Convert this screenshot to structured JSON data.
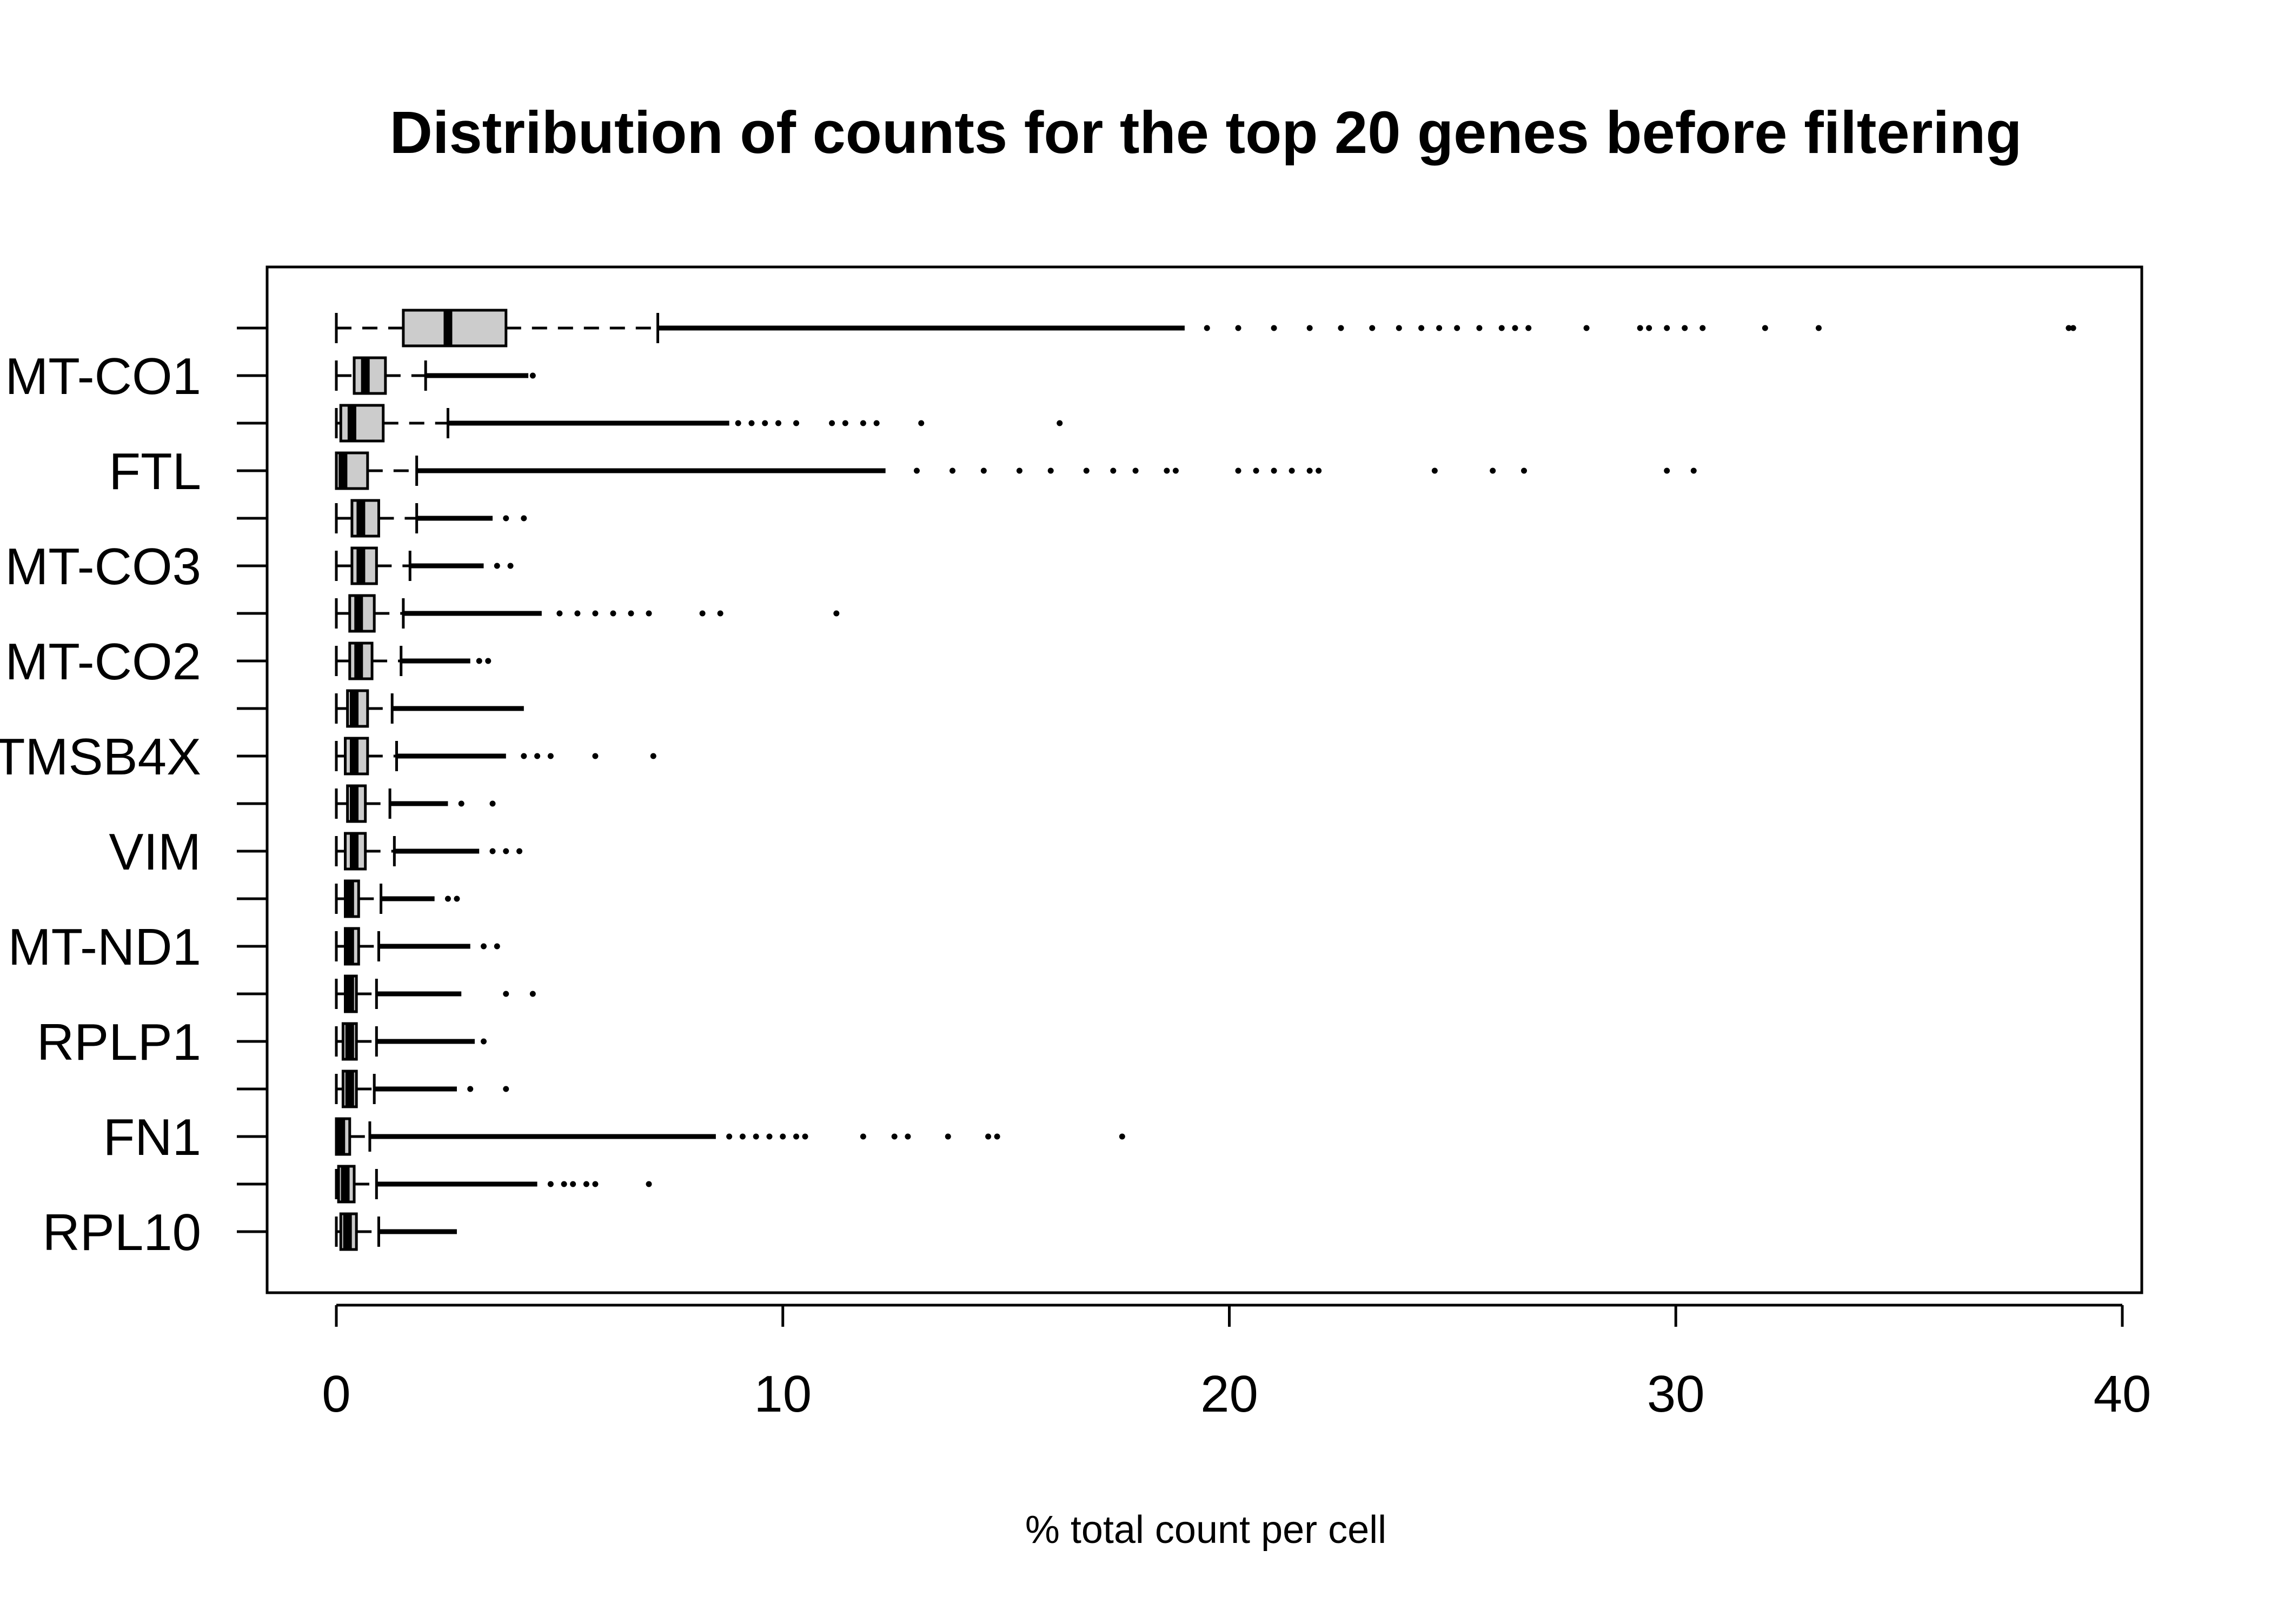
{
  "chart_data": {
    "type": "boxplot",
    "orientation": "horizontal",
    "title": "Distribution of counts for the top 20 genes before filtering",
    "xlabel": "% total count per cell",
    "ylabel": "",
    "xlim": [
      0,
      40
    ],
    "x_ticks": [
      "0",
      "10",
      "20",
      "30",
      "40"
    ],
    "grid": false,
    "legend": "none",
    "box_fill": "#cccccc",
    "line_color": "#000000",
    "series": [
      {
        "label": "",
        "min": 0.0,
        "q1": 1.5,
        "median": 2.5,
        "q3": 3.8,
        "whisker_high": 7.2,
        "outlier_dense_to": 19.0,
        "outliers": [
          19.5,
          20.2,
          21.0,
          21.8,
          22.5,
          23.2,
          23.8,
          24.3,
          24.7,
          25.1,
          25.6,
          26.1,
          26.4,
          26.7,
          28.0,
          29.2,
          29.4,
          29.8,
          30.2,
          30.6,
          32.0,
          33.2,
          38.8,
          38.9
        ]
      },
      {
        "label": "MT-CO1",
        "min": 0.0,
        "q1": 0.4,
        "median": 0.65,
        "q3": 1.1,
        "whisker_high": 2.0,
        "outlier_dense_to": 4.3,
        "outliers": [
          4.4
        ]
      },
      {
        "label": "",
        "min": 0.0,
        "q1": 0.1,
        "median": 0.35,
        "q3": 1.05,
        "whisker_high": 2.5,
        "outlier_dense_to": 8.8,
        "outliers": [
          9.0,
          9.3,
          9.6,
          9.9,
          10.3,
          11.1,
          11.4,
          11.8,
          12.1,
          13.1,
          16.2
        ]
      },
      {
        "label": "FTL",
        "min": 0.0,
        "q1": 0.0,
        "median": 0.15,
        "q3": 0.7,
        "whisker_high": 1.8,
        "outlier_dense_to": 12.3,
        "outliers": [
          13.0,
          13.8,
          14.5,
          15.3,
          16.0,
          16.8,
          17.4,
          17.9,
          18.6,
          18.8,
          20.2,
          20.6,
          21.0,
          21.4,
          21.8,
          22.0,
          24.6,
          25.9,
          26.6,
          29.8,
          30.4
        ]
      },
      {
        "label": "",
        "min": 0.0,
        "q1": 0.35,
        "median": 0.55,
        "q3": 0.95,
        "whisker_high": 1.8,
        "outlier_dense_to": 3.5,
        "outliers": [
          3.8,
          4.2
        ]
      },
      {
        "label": "MT-CO3",
        "min": 0.0,
        "q1": 0.35,
        "median": 0.55,
        "q3": 0.9,
        "whisker_high": 1.65,
        "outlier_dense_to": 3.3,
        "outliers": [
          3.6,
          3.9
        ]
      },
      {
        "label": "",
        "min": 0.0,
        "q1": 0.3,
        "median": 0.5,
        "q3": 0.85,
        "whisker_high": 1.5,
        "outlier_dense_to": 4.6,
        "outliers": [
          5.0,
          5.4,
          5.8,
          6.2,
          6.6,
          7.0,
          8.2,
          8.6,
          11.2
        ]
      },
      {
        "label": "MT-CO2",
        "min": 0.0,
        "q1": 0.3,
        "median": 0.5,
        "q3": 0.8,
        "whisker_high": 1.45,
        "outlier_dense_to": 3.0,
        "outliers": [
          3.2,
          3.4
        ]
      },
      {
        "label": "",
        "min": 0.0,
        "q1": 0.25,
        "median": 0.4,
        "q3": 0.7,
        "whisker_high": 1.25,
        "outlier_dense_to": 4.2,
        "outliers": []
      },
      {
        "label": "TMSB4X",
        "min": 0.0,
        "q1": 0.2,
        "median": 0.4,
        "q3": 0.7,
        "whisker_high": 1.35,
        "outlier_dense_to": 3.8,
        "outliers": [
          4.2,
          4.5,
          4.8,
          5.8,
          7.1
        ]
      },
      {
        "label": "",
        "min": 0.0,
        "q1": 0.25,
        "median": 0.4,
        "q3": 0.65,
        "whisker_high": 1.2,
        "outlier_dense_to": 2.5,
        "outliers": [
          2.8,
          3.5
        ]
      },
      {
        "label": "VIM",
        "min": 0.0,
        "q1": 0.2,
        "median": 0.4,
        "q3": 0.65,
        "whisker_high": 1.3,
        "outlier_dense_to": 3.2,
        "outliers": [
          3.5,
          3.8,
          4.1
        ]
      },
      {
        "label": "",
        "min": 0.0,
        "q1": 0.2,
        "median": 0.3,
        "q3": 0.5,
        "whisker_high": 1.0,
        "outlier_dense_to": 2.2,
        "outliers": [
          2.5,
          2.7
        ]
      },
      {
        "label": "MT-ND1",
        "min": 0.0,
        "q1": 0.2,
        "median": 0.3,
        "q3": 0.5,
        "whisker_high": 0.95,
        "outlier_dense_to": 3.0,
        "outliers": [
          3.3,
          3.6
        ]
      },
      {
        "label": "",
        "min": 0.0,
        "q1": 0.2,
        "median": 0.3,
        "q3": 0.45,
        "whisker_high": 0.9,
        "outlier_dense_to": 2.8,
        "outliers": [
          3.8,
          4.4
        ]
      },
      {
        "label": "RPLP1",
        "min": 0.0,
        "q1": 0.15,
        "median": 0.3,
        "q3": 0.45,
        "whisker_high": 0.9,
        "outlier_dense_to": 3.1,
        "outliers": [
          3.3
        ]
      },
      {
        "label": "",
        "min": 0.0,
        "q1": 0.15,
        "median": 0.3,
        "q3": 0.45,
        "whisker_high": 0.85,
        "outlier_dense_to": 2.7,
        "outliers": [
          3.0,
          3.8
        ]
      },
      {
        "label": "FN1",
        "min": 0.0,
        "q1": 0.0,
        "median": 0.1,
        "q3": 0.3,
        "whisker_high": 0.75,
        "outlier_dense_to": 8.5,
        "outliers": [
          8.8,
          9.1,
          9.4,
          9.7,
          10.0,
          10.3,
          10.5,
          11.8,
          12.5,
          12.8,
          13.7,
          14.6,
          14.8,
          17.6
        ]
      },
      {
        "label": "",
        "min": 0.0,
        "q1": 0.05,
        "median": 0.2,
        "q3": 0.4,
        "whisker_high": 0.9,
        "outlier_dense_to": 4.5,
        "outliers": [
          4.8,
          5.1,
          5.3,
          5.6,
          5.8,
          7.0
        ]
      },
      {
        "label": "RPL10",
        "min": 0.0,
        "q1": 0.1,
        "median": 0.25,
        "q3": 0.45,
        "whisker_high": 0.95,
        "outlier_dense_to": 2.7,
        "outliers": []
      }
    ]
  }
}
